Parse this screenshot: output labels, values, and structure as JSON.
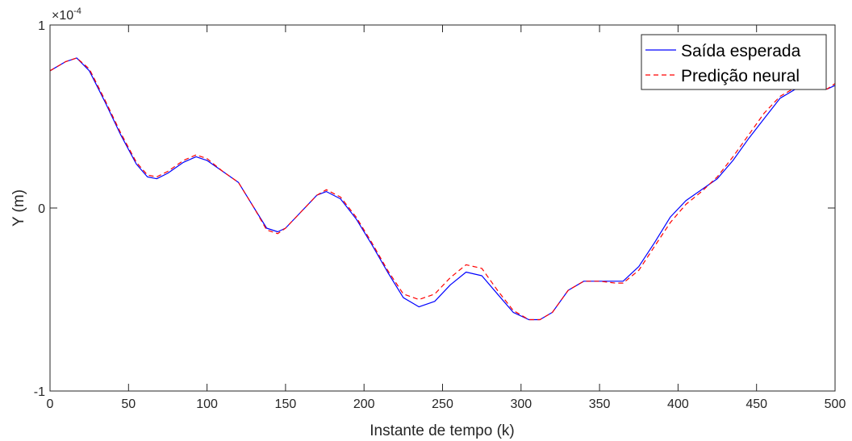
{
  "chart_data": {
    "type": "line",
    "xlabel": "Instante de tempo (k)",
    "ylabel": "Y (m)",
    "xlim": [
      0,
      500
    ],
    "ylim": [
      -1,
      1
    ],
    "x_ticks": [
      "0",
      "50",
      "100",
      "150",
      "200",
      "250",
      "300",
      "350",
      "400",
      "450",
      "500"
    ],
    "y_ticks": [
      "1",
      "0",
      "-1"
    ],
    "y_exponent_label": "×10",
    "y_exponent_power": "-4",
    "grid": false,
    "legend_position": "top-right",
    "series": [
      {
        "name": "Saída esperada",
        "color": "#0000ff",
        "style": "solid",
        "x": [
          0,
          10,
          17,
          25,
          35,
          45,
          55,
          62,
          68,
          75,
          85,
          93,
          100,
          110,
          120,
          130,
          138,
          145,
          150,
          160,
          170,
          176,
          185,
          195,
          205,
          215,
          225,
          235,
          245,
          255,
          265,
          275,
          285,
          295,
          305,
          312,
          320,
          330,
          340,
          350,
          360,
          365,
          375,
          385,
          395,
          405,
          415,
          425,
          435,
          445,
          455,
          465,
          475,
          485,
          495,
          500
        ],
        "values": [
          0.75,
          0.8,
          0.82,
          0.75,
          0.58,
          0.4,
          0.24,
          0.17,
          0.16,
          0.19,
          0.25,
          0.28,
          0.26,
          0.2,
          0.14,
          0.0,
          -0.11,
          -0.13,
          -0.11,
          -0.02,
          0.07,
          0.09,
          0.05,
          -0.06,
          -0.2,
          -0.35,
          -0.49,
          -0.54,
          -0.51,
          -0.42,
          -0.35,
          -0.37,
          -0.47,
          -0.57,
          -0.61,
          -0.61,
          -0.57,
          -0.45,
          -0.4,
          -0.4,
          -0.4,
          -0.4,
          -0.32,
          -0.19,
          -0.05,
          0.04,
          0.1,
          0.16,
          0.26,
          0.38,
          0.49,
          0.6,
          0.65,
          0.66,
          0.65,
          0.67
        ]
      },
      {
        "name": "Predição neural",
        "color": "#ff0000",
        "style": "dashed",
        "x": [
          0,
          10,
          17,
          25,
          35,
          45,
          55,
          62,
          68,
          75,
          85,
          93,
          100,
          110,
          120,
          130,
          138,
          145,
          150,
          160,
          170,
          176,
          185,
          195,
          205,
          215,
          225,
          235,
          245,
          255,
          265,
          275,
          285,
          295,
          305,
          312,
          320,
          330,
          340,
          350,
          360,
          365,
          375,
          385,
          395,
          405,
          415,
          425,
          435,
          445,
          455,
          465,
          475,
          485,
          495,
          500
        ],
        "values": [
          0.75,
          0.8,
          0.82,
          0.76,
          0.59,
          0.41,
          0.25,
          0.18,
          0.17,
          0.2,
          0.26,
          0.29,
          0.27,
          0.2,
          0.14,
          0.0,
          -0.12,
          -0.14,
          -0.11,
          -0.02,
          0.07,
          0.1,
          0.06,
          -0.05,
          -0.19,
          -0.34,
          -0.47,
          -0.5,
          -0.47,
          -0.38,
          -0.31,
          -0.33,
          -0.45,
          -0.56,
          -0.61,
          -0.61,
          -0.57,
          -0.45,
          -0.4,
          -0.4,
          -0.41,
          -0.41,
          -0.34,
          -0.21,
          -0.08,
          0.02,
          0.09,
          0.17,
          0.28,
          0.4,
          0.52,
          0.61,
          0.66,
          0.66,
          0.65,
          0.68
        ]
      }
    ]
  }
}
